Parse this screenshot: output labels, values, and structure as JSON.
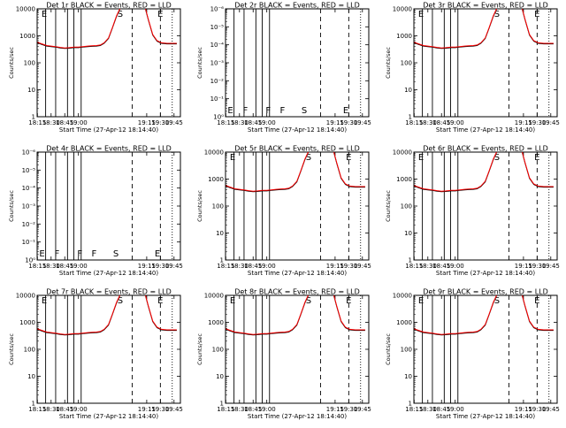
{
  "chart_data": [
    {
      "type": "line",
      "title": "Det 1r BLACK = Events, RED = LLD",
      "variant": "count",
      "ylabel": "Counts/sec",
      "xlabel": "Start Time (27-Apr-12 18:14:40)",
      "xticks": [
        "18:15",
        "18:30",
        "18:45",
        "19:00",
        "19:15",
        "19:30",
        "19:45"
      ],
      "yticks": [
        "1",
        "10",
        "100",
        "1000",
        "10000"
      ],
      "ylim": [
        1,
        10000
      ],
      "annotations": [
        "E",
        "S",
        "E"
      ],
      "series": [
        {
          "name": "BLACK = Events",
          "color": "#000000"
        },
        {
          "name": "RED = LLD",
          "color": "#ff0000"
        }
      ]
    },
    {
      "type": "line",
      "title": "Det 2r BLACK = Events, RED = LLD",
      "variant": "frac",
      "ylabel": "Counts/sec",
      "xlabel": "Start Time (27-Apr-12 18:14:40)",
      "xticks": [
        "18:15",
        "18:30",
        "18:45",
        "19:00",
        "19:15",
        "19:30",
        "19:45"
      ],
      "yticks": [
        "10⁰",
        "10⁻¹",
        "10⁻²",
        "10⁻³",
        "10⁻⁴",
        "10⁻⁵",
        "10⁻⁶"
      ],
      "annotations": [
        "E",
        "F",
        "F",
        "F",
        "S",
        "E"
      ],
      "series": [
        {
          "name": "BLACK = Events",
          "color": "#000000"
        },
        {
          "name": "RED = LLD",
          "color": "#ff0000"
        }
      ]
    },
    {
      "type": "line",
      "title": "Det 3r BLACK = Events, RED = LLD",
      "variant": "count",
      "ylabel": "Counts/sec",
      "xlabel": "Start Time (27-Apr-12 18:14:40)",
      "xticks": [
        "18:15",
        "18:30",
        "18:45",
        "19:00",
        "19:15",
        "19:30",
        "19:45"
      ],
      "yticks": [
        "1",
        "10",
        "100",
        "1000",
        "10000"
      ],
      "ylim": [
        1,
        10000
      ],
      "annotations": [
        "E",
        "S",
        "E"
      ],
      "series": [
        {
          "name": "BLACK = Events",
          "color": "#000000"
        },
        {
          "name": "RED = LLD",
          "color": "#ff0000"
        }
      ]
    },
    {
      "type": "line",
      "title": "Det 4r BLACK = Events, RED = LLD",
      "variant": "frac",
      "ylabel": "Counts/sec",
      "xlabel": "Start Time (27-Apr-12 18:14:40)",
      "xticks": [
        "18:15",
        "18:30",
        "18:45",
        "19:00",
        "19:15",
        "19:30",
        "19:45"
      ],
      "yticks": [
        "10⁰",
        "10⁻¹",
        "10⁻²",
        "10⁻³",
        "10⁻⁴",
        "10⁻⁵",
        "10⁻⁶"
      ],
      "annotations": [
        "E",
        "F",
        "F",
        "F",
        "S",
        "E"
      ],
      "series": [
        {
          "name": "BLACK = Events",
          "color": "#000000"
        },
        {
          "name": "RED = LLD",
          "color": "#ff0000"
        }
      ]
    },
    {
      "type": "line",
      "title": "Det 5r BLACK = Events, RED = LLD",
      "variant": "count",
      "ylabel": "Counts/sec",
      "xlabel": "Start Time (27-Apr-12 18:14:40)",
      "xticks": [
        "18:15",
        "18:30",
        "18:45",
        "19:00",
        "19:15",
        "19:30",
        "19:45"
      ],
      "yticks": [
        "1",
        "10",
        "100",
        "1000",
        "10000"
      ],
      "ylim": [
        1,
        10000
      ],
      "annotations": [
        "E",
        "S",
        "E"
      ],
      "series": [
        {
          "name": "BLACK = Events",
          "color": "#000000"
        },
        {
          "name": "RED = LLD",
          "color": "#ff0000"
        }
      ]
    },
    {
      "type": "line",
      "title": "Det 6r BLACK = Events, RED = LLD",
      "variant": "count",
      "ylabel": "Counts/sec",
      "xlabel": "Start Time (27-Apr-12 18:14:40)",
      "xticks": [
        "18:15",
        "18:30",
        "18:45",
        "19:00",
        "19:15",
        "19:30",
        "19:45"
      ],
      "yticks": [
        "1",
        "10",
        "100",
        "1000",
        "10000"
      ],
      "ylim": [
        1,
        10000
      ],
      "annotations": [
        "E",
        "S",
        "E"
      ],
      "series": [
        {
          "name": "BLACK = Events",
          "color": "#000000"
        },
        {
          "name": "RED = LLD",
          "color": "#ff0000"
        }
      ]
    },
    {
      "type": "line",
      "title": "Det 7r BLACK = Events, RED = LLD",
      "variant": "count",
      "ylabel": "Counts/sec",
      "xlabel": "Start Time (27-Apr-12 18:14:40)",
      "xticks": [
        "18:15",
        "18:30",
        "18:45",
        "19:00",
        "19:15",
        "19:30",
        "19:45"
      ],
      "yticks": [
        "1",
        "10",
        "100",
        "1000",
        "10000"
      ],
      "ylim": [
        1,
        10000
      ],
      "annotations": [
        "E",
        "S",
        "E"
      ],
      "series": [
        {
          "name": "BLACK = Events",
          "color": "#000000"
        },
        {
          "name": "RED = LLD",
          "color": "#ff0000"
        }
      ]
    },
    {
      "type": "line",
      "title": "Det 8r BLACK = Events, RED = LLD",
      "variant": "count",
      "ylabel": "Counts/sec",
      "xlabel": "Start Time (27-Apr-12 18:14:40)",
      "xticks": [
        "18:15",
        "18:30",
        "18:45",
        "19:00",
        "19:15",
        "19:30",
        "19:45"
      ],
      "yticks": [
        "1",
        "10",
        "100",
        "1000",
        "10000"
      ],
      "ylim": [
        1,
        10000
      ],
      "annotations": [
        "E",
        "S",
        "E"
      ],
      "series": [
        {
          "name": "BLACK = Events",
          "color": "#000000"
        },
        {
          "name": "RED = LLD",
          "color": "#ff0000"
        }
      ]
    },
    {
      "type": "line",
      "title": "Det 9r BLACK = Events, RED = LLD",
      "variant": "count",
      "ylabel": "Counts/sec",
      "xlabel": "Start Time (27-Apr-12 18:14:40)",
      "xticks": [
        "18:15",
        "18:30",
        "18:45",
        "19:00",
        "19:15",
        "19:30",
        "19:45"
      ],
      "yticks": [
        "1",
        "10",
        "100",
        "1000",
        "10000"
      ],
      "ylim": [
        1,
        10000
      ],
      "annotations": [
        "E",
        "S",
        "E"
      ],
      "series": [
        {
          "name": "BLACK = Events",
          "color": "#000000"
        },
        {
          "name": "RED = LLD",
          "color": "#ff0000"
        }
      ]
    }
  ]
}
